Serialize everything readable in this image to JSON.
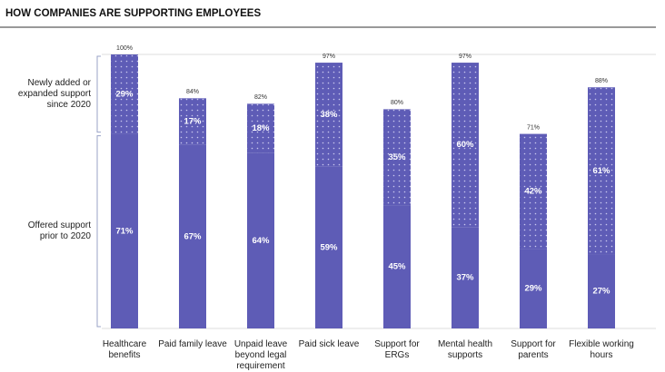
{
  "chart_data": {
    "type": "stacked_bar",
    "title": "HOW COMPANIES ARE SUPPORTING EMPLOYEES",
    "categories": [
      "Healthcare benefits",
      "Paid family leave",
      "Unpaid leave beyond legal requirement",
      "Paid sick leave",
      "Support for ERGs",
      "Mental health supports",
      "Support for parents",
      "Flexible working hours"
    ],
    "series": [
      {
        "name": "Offered support prior to 2020",
        "color": "#5e5cb6",
        "pattern": "solid",
        "values": [
          71,
          67,
          64,
          59,
          45,
          37,
          29,
          27
        ],
        "value_labels": [
          "71%",
          "67%",
          "64%",
          "59%",
          "45%",
          "37%",
          "29%",
          "27%"
        ]
      },
      {
        "name": "Newly added or expanded support since 2020",
        "color": "#5e5cb6",
        "pattern": "dotted",
        "values": [
          29,
          17,
          18,
          38,
          35,
          60,
          42,
          61
        ],
        "value_labels": [
          "29%",
          "17%",
          "18%",
          "38%",
          "35%",
          "60%",
          "42%",
          "61%"
        ]
      }
    ],
    "totals": [
      100,
      84,
      82,
      97,
      80,
      97,
      71,
      88
    ],
    "total_labels": [
      "100%",
      "84%",
      "82%",
      "97%",
      "80%",
      "97%",
      "71%",
      "88%"
    ],
    "ylim": [
      0,
      100
    ]
  }
}
